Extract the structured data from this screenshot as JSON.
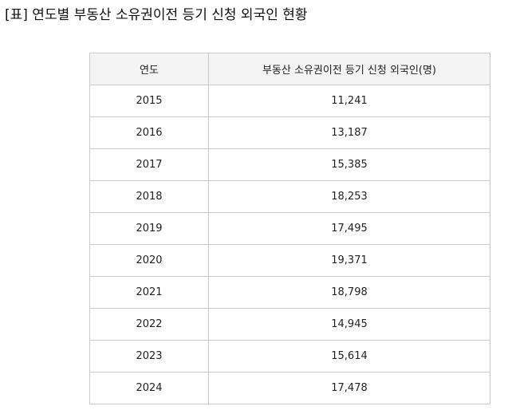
{
  "title": "[표] 연도별 부동산 소유권이전 등기 신청 외국인 현황",
  "table": {
    "headers": [
      "연도",
      "부동산 소유권이전 등기 신청 외국인(명)"
    ],
    "rows": [
      [
        "2015",
        "11,241"
      ],
      [
        "2016",
        "13,187"
      ],
      [
        "2017",
        "15,385"
      ],
      [
        "2018",
        "18,253"
      ],
      [
        "2019",
        "17,495"
      ],
      [
        "2020",
        "19,371"
      ],
      [
        "2021",
        "18,798"
      ],
      [
        "2022",
        "14,945"
      ],
      [
        "2023",
        "15,614"
      ],
      [
        "2024",
        "17,478"
      ]
    ]
  }
}
